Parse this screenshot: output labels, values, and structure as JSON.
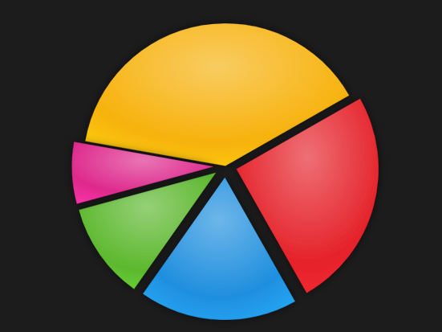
{
  "chart_data": {
    "type": "pie",
    "values": [
      39,
      25,
      18,
      11,
      7
    ],
    "colors": [
      "#f7b20c",
      "#e5232b",
      "#1f8fde",
      "#5cb82e",
      "#de2a8c"
    ],
    "data_labels": false
  }
}
